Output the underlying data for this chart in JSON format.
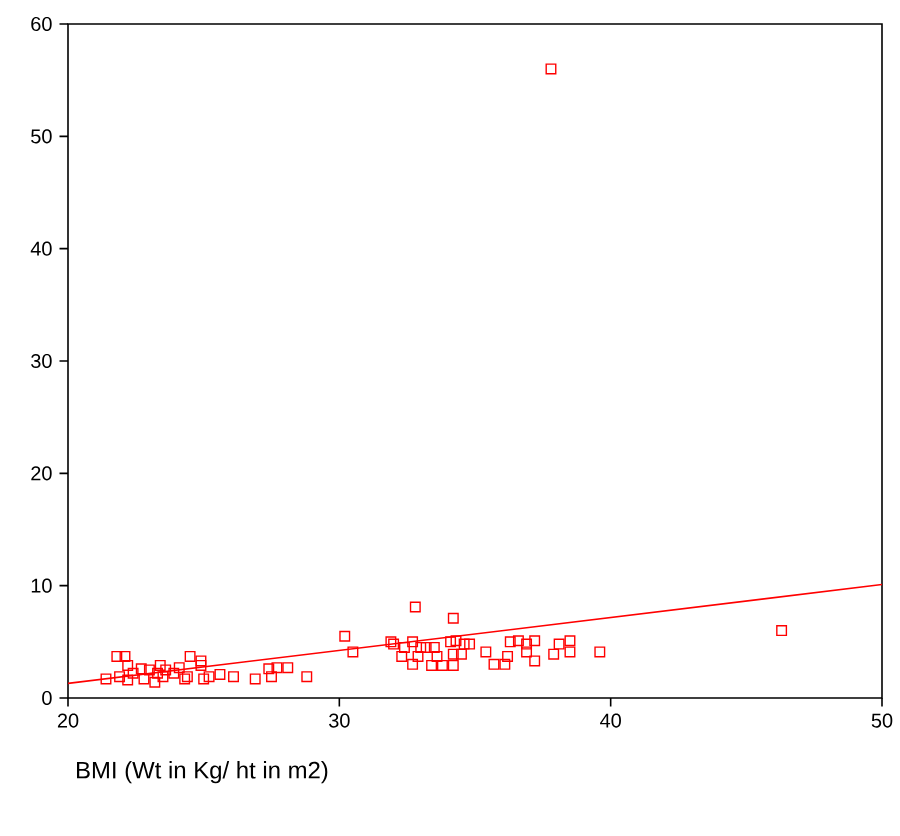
{
  "chart_data": {
    "type": "scatter",
    "xlabel": "BMI (Wt in Kg/ ht in m2)",
    "xlim": [
      20,
      50
    ],
    "ylim": [
      0,
      60
    ],
    "xticks": [
      20,
      30,
      40,
      50
    ],
    "yticks": [
      0,
      10,
      20,
      30,
      40,
      50,
      60
    ],
    "grid": false,
    "marker": "square",
    "series": [
      {
        "color": "#ff0000",
        "x": [
          21.8,
          22.1,
          24.5,
          24.9,
          24.9,
          21.4,
          21.9,
          22.2,
          22.2,
          22.4,
          22.7,
          22.8,
          23.0,
          23.2,
          23.3,
          23.4,
          23.5,
          23.6,
          23.9,
          24.1,
          24.3,
          24.4,
          25.0,
          25.2,
          25.6,
          26.1,
          26.9,
          27.4,
          27.5,
          27.7,
          28.1,
          28.8,
          32.8,
          34.2,
          30.2,
          30.5,
          31.9,
          32.0,
          32.4,
          32.7,
          32.3,
          33.0,
          33.2,
          33.5,
          32.7,
          32.9,
          33.4,
          33.8,
          34.2,
          33.6,
          34.2,
          34.1,
          34.3,
          34.6,
          34.8,
          34.5,
          35.4,
          35.7,
          36.1,
          36.2,
          36.3,
          36.6,
          36.9,
          37.2,
          36.9,
          37.2,
          37.9,
          38.1,
          38.5,
          38.5,
          39.6,
          37.8,
          46.3
        ],
        "values": [
          3.7,
          3.7,
          3.7,
          3.3,
          2.9,
          1.7,
          1.9,
          2.9,
          1.6,
          2.2,
          2.6,
          1.7,
          2.5,
          1.4,
          2.2,
          2.9,
          1.9,
          2.5,
          2.2,
          2.7,
          1.7,
          1.9,
          1.7,
          1.9,
          2.1,
          1.9,
          1.7,
          2.6,
          1.9,
          2.7,
          2.7,
          1.9,
          8.1,
          7.1,
          5.5,
          4.1,
          5.0,
          4.8,
          4.5,
          5.0,
          3.7,
          4.5,
          4.5,
          4.5,
          3.0,
          3.7,
          2.9,
          2.9,
          2.9,
          3.7,
          3.9,
          5.0,
          5.1,
          4.8,
          4.8,
          3.9,
          4.1,
          3.0,
          3.0,
          3.7,
          5.0,
          5.1,
          4.8,
          5.1,
          4.1,
          3.3,
          3.9,
          4.8,
          5.1,
          4.1,
          4.1,
          56,
          6.0
        ]
      },
      {
        "type": "line",
        "color": "#ff0000",
        "marker": "none",
        "x": [
          20,
          50
        ],
        "values": [
          1.3,
          10.1
        ]
      }
    ]
  }
}
